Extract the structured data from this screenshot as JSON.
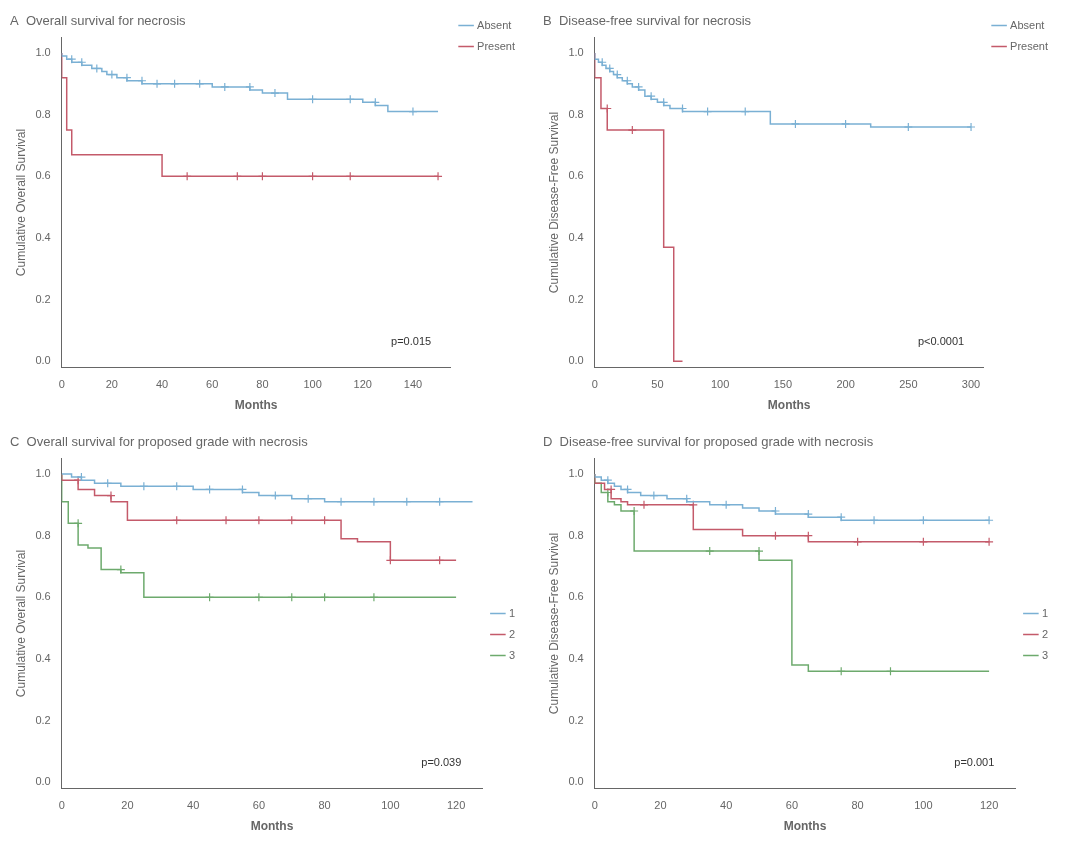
{
  "chart_data": [
    {
      "type": "step",
      "title": "A  Overall survival for necrosis",
      "xlabel": "Months",
      "ylabel": "Cumulative Overall Survival",
      "xlim": [
        0,
        155
      ],
      "ylim": [
        -0.02,
        1.05
      ],
      "xticks": [
        0,
        20,
        40,
        60,
        80,
        100,
        120,
        140
      ],
      "yticks": [
        {
          "value": 0.0,
          "label": "0.0"
        },
        0.2,
        0.4,
        0.6,
        0.8,
        {
          "value": 1.0,
          "label": "1.0"
        }
      ],
      "grid": false,
      "legend": "upper right",
      "annotations": [
        "p=0.015"
      ],
      "series": [
        {
          "name": "Absent",
          "color": "#7ab0d4",
          "x": [
            0,
            2,
            4,
            6,
            8,
            10,
            12,
            14,
            16,
            18,
            20,
            22,
            24,
            26,
            28,
            30,
            32,
            34,
            36,
            38,
            40,
            45,
            50,
            55,
            60,
            65,
            70,
            75,
            80,
            85,
            90,
            100,
            110,
            115,
            120,
            125,
            130,
            140,
            150
          ],
          "values": [
            1.0,
            0.99,
            0.98,
            0.97,
            0.97,
            0.96,
            0.96,
            0.95,
            0.95,
            0.94,
            0.93,
            0.93,
            0.92,
            0.92,
            0.91,
            0.91,
            0.91,
            0.9,
            0.9,
            0.9,
            0.9,
            0.9,
            0.9,
            0.9,
            0.9,
            0.89,
            0.89,
            0.89,
            0.88,
            0.87,
            0.87,
            0.85,
            0.85,
            0.85,
            0.85,
            0.84,
            0.83,
            0.81,
            0.81
          ]
        },
        {
          "type": "scatter",
          "marker": "+",
          "color": "#7ab0d4",
          "x": [
            4,
            8,
            14,
            20,
            26,
            32,
            38,
            45,
            55,
            65,
            75,
            85,
            100,
            115,
            125,
            140
          ],
          "values": [
            0.98,
            0.97,
            0.95,
            0.93,
            0.92,
            0.91,
            0.9,
            0.9,
            0.9,
            0.89,
            0.89,
            0.87,
            0.85,
            0.85,
            0.84,
            0.81
          ]
        },
        {
          "name": "Present",
          "color": "#c45a6a",
          "x": [
            0,
            2,
            4,
            8,
            40,
            50,
            60,
            70,
            80,
            90,
            100,
            115,
            120,
            150
          ],
          "values": [
            1.0,
            0.92,
            0.75,
            0.67,
            0.67,
            0.6,
            0.6,
            0.6,
            0.6,
            0.6,
            0.6,
            0.6,
            0.6,
            0.6
          ]
        },
        {
          "type": "scatter",
          "marker": "+",
          "color": "#c45a6a",
          "x": [
            50,
            70,
            80,
            100,
            115,
            150
          ],
          "values": [
            0.6,
            0.6,
            0.6,
            0.6,
            0.6,
            0.6
          ]
        }
      ]
    },
    {
      "type": "step",
      "title": "B  Disease-free survival for necrosis",
      "xlabel": "Months",
      "ylabel": "Cumulative Disease-Free Survival",
      "xlim": [
        0,
        310
      ],
      "ylim": [
        -0.02,
        1.05
      ],
      "xticks": [
        0,
        50,
        100,
        150,
        200,
        250,
        300
      ],
      "yticks": [
        {
          "value": 0.0,
          "label": "0.0"
        },
        0.2,
        0.4,
        0.6,
        0.8,
        {
          "value": 1.0,
          "label": "1.0"
        }
      ],
      "grid": false,
      "legend": "upper right",
      "annotations": [
        "p<0.0001"
      ],
      "series": [
        {
          "name": "Absent",
          "color": "#7ab0d4",
          "x": [
            0,
            3,
            6,
            9,
            12,
            15,
            18,
            22,
            26,
            30,
            35,
            40,
            45,
            50,
            55,
            60,
            70,
            80,
            90,
            100,
            120,
            140,
            160,
            180,
            200,
            220,
            250,
            270,
            300
          ],
          "values": [
            1.0,
            0.98,
            0.97,
            0.96,
            0.95,
            0.94,
            0.93,
            0.92,
            0.91,
            0.9,
            0.89,
            0.88,
            0.86,
            0.85,
            0.84,
            0.83,
            0.82,
            0.81,
            0.81,
            0.81,
            0.81,
            0.81,
            0.77,
            0.77,
            0.77,
            0.77,
            0.76,
            0.76,
            0.76
          ]
        },
        {
          "type": "scatter",
          "marker": "+",
          "color": "#7ab0d4",
          "x": [
            6,
            12,
            18,
            26,
            35,
            45,
            55,
            70,
            90,
            120,
            160,
            200,
            250,
            300
          ],
          "values": [
            0.97,
            0.95,
            0.93,
            0.91,
            0.89,
            0.86,
            0.84,
            0.82,
            0.81,
            0.81,
            0.77,
            0.77,
            0.76,
            0.76
          ]
        },
        {
          "name": "Present",
          "color": "#c45a6a",
          "x": [
            0,
            5,
            10,
            20,
            30,
            45,
            55,
            63,
            65,
            70
          ],
          "values": [
            1.0,
            0.92,
            0.82,
            0.75,
            0.75,
            0.75,
            0.75,
            0.37,
            0.0,
            0.0
          ]
        },
        {
          "type": "scatter",
          "marker": "+",
          "color": "#c45a6a",
          "x": [
            10,
            30
          ],
          "values": [
            0.82,
            0.75
          ]
        }
      ]
    },
    {
      "type": "step",
      "title": "C  Overall survival for proposed grade with necrosis",
      "xlabel": "Months",
      "ylabel": "Cumulative Overall Survival",
      "xlim": [
        0,
        128
      ],
      "ylim": [
        -0.02,
        1.05
      ],
      "xticks": [
        0,
        20,
        40,
        60,
        80,
        100,
        120
      ],
      "yticks": [
        {
          "value": 0.0,
          "label": "0.0"
        },
        0.2,
        0.4,
        0.6,
        0.8,
        {
          "value": 1.0,
          "label": "1.0"
        }
      ],
      "grid": false,
      "legend": "center right",
      "annotations": [
        "p=0.039"
      ],
      "series": [
        {
          "name": "1",
          "color": "#7ab0d4",
          "x": [
            0,
            3,
            6,
            10,
            14,
            18,
            25,
            30,
            35,
            40,
            45,
            50,
            55,
            60,
            65,
            70,
            75,
            80,
            85,
            90,
            95,
            100,
            105,
            110,
            115,
            120,
            125
          ],
          "values": [
            1.0,
            1.0,
            0.99,
            0.98,
            0.97,
            0.97,
            0.96,
            0.96,
            0.96,
            0.96,
            0.95,
            0.95,
            0.95,
            0.94,
            0.93,
            0.93,
            0.92,
            0.92,
            0.91,
            0.91,
            0.91,
            0.91,
            0.91,
            0.91,
            0.91,
            0.91,
            0.91
          ]
        },
        {
          "type": "scatter",
          "marker": "+",
          "color": "#7ab0d4",
          "x": [
            6,
            14,
            25,
            35,
            45,
            55,
            65,
            75,
            85,
            95,
            105,
            115
          ],
          "values": [
            0.99,
            0.97,
            0.96,
            0.96,
            0.95,
            0.95,
            0.93,
            0.92,
            0.91,
            0.91,
            0.91,
            0.91
          ]
        },
        {
          "name": "2",
          "color": "#c45a6a",
          "x": [
            0,
            5,
            10,
            15,
            17,
            20,
            35,
            45,
            50,
            55,
            60,
            65,
            70,
            75,
            80,
            85,
            90,
            100,
            105,
            108,
            115,
            120
          ],
          "values": [
            1.0,
            0.98,
            0.95,
            0.93,
            0.91,
            0.91,
            0.85,
            0.85,
            0.85,
            0.85,
            0.85,
            0.85,
            0.85,
            0.85,
            0.85,
            0.85,
            0.79,
            0.78,
            0.72,
            0.72,
            0.72,
            0.72
          ]
        },
        {
          "type": "scatter",
          "marker": "+",
          "color": "#c45a6a",
          "x": [
            5,
            15,
            35,
            50,
            60,
            70,
            80,
            100,
            115
          ],
          "values": [
            0.98,
            0.93,
            0.85,
            0.85,
            0.85,
            0.85,
            0.85,
            0.72,
            0.72
          ]
        },
        {
          "name": "3",
          "color": "#6daa6d",
          "x": [
            0,
            2,
            5,
            8,
            12,
            18,
            25,
            35,
            45,
            55,
            60,
            65,
            70,
            75,
            80,
            85,
            90,
            95,
            100,
            110,
            120
          ],
          "values": [
            1.0,
            0.91,
            0.84,
            0.77,
            0.76,
            0.69,
            0.68,
            0.6,
            0.6,
            0.6,
            0.6,
            0.6,
            0.6,
            0.6,
            0.6,
            0.6,
            0.6,
            0.6,
            0.6,
            0.6,
            0.6
          ]
        },
        {
          "type": "scatter",
          "marker": "+",
          "color": "#6daa6d",
          "x": [
            5,
            18,
            45,
            60,
            70,
            80,
            95
          ],
          "values": [
            0.84,
            0.69,
            0.6,
            0.6,
            0.6,
            0.6,
            0.6
          ]
        }
      ]
    },
    {
      "type": "step",
      "title": "D  Disease-free survival for proposed grade with necrosis",
      "xlabel": "Months",
      "ylabel": "Cumulative Disease-Free Survival",
      "xlim": [
        0,
        128
      ],
      "ylim": [
        -0.02,
        1.05
      ],
      "xticks": [
        0,
        20,
        40,
        60,
        80,
        100,
        120
      ],
      "yticks": [
        {
          "value": 0.0,
          "label": "0.0"
        },
        0.2,
        0.4,
        0.6,
        0.8,
        {
          "value": 1.0,
          "label": "1.0"
        }
      ],
      "grid": false,
      "legend": "center right",
      "annotations": [
        "p=0.001"
      ],
      "series": [
        {
          "name": "1",
          "color": "#7ab0d4",
          "x": [
            0,
            2,
            4,
            6,
            8,
            10,
            14,
            18,
            22,
            28,
            35,
            40,
            45,
            50,
            55,
            60,
            65,
            70,
            75,
            80,
            85,
            90,
            100,
            110,
            120
          ],
          "values": [
            1.0,
            0.99,
            0.98,
            0.97,
            0.96,
            0.95,
            0.94,
            0.93,
            0.93,
            0.92,
            0.91,
            0.9,
            0.9,
            0.89,
            0.88,
            0.87,
            0.87,
            0.86,
            0.86,
            0.85,
            0.85,
            0.85,
            0.85,
            0.85,
            0.85
          ]
        },
        {
          "type": "scatter",
          "marker": "+",
          "color": "#7ab0d4",
          "x": [
            4,
            10,
            18,
            28,
            40,
            55,
            65,
            75,
            85,
            100,
            120
          ],
          "values": [
            0.98,
            0.95,
            0.93,
            0.92,
            0.9,
            0.88,
            0.87,
            0.86,
            0.85,
            0.85,
            0.85
          ]
        },
        {
          "name": "2",
          "color": "#c45a6a",
          "x": [
            0,
            3,
            5,
            8,
            10,
            15,
            20,
            30,
            45,
            55,
            60,
            65,
            70,
            80,
            90,
            100,
            110,
            120
          ],
          "values": [
            1.0,
            0.97,
            0.95,
            0.92,
            0.91,
            0.9,
            0.9,
            0.9,
            0.82,
            0.8,
            0.8,
            0.8,
            0.78,
            0.78,
            0.78,
            0.78,
            0.78,
            0.78
          ]
        },
        {
          "type": "scatter",
          "marker": "+",
          "color": "#c45a6a",
          "x": [
            5,
            15,
            30,
            55,
            65,
            80,
            100,
            120
          ],
          "values": [
            0.95,
            0.9,
            0.9,
            0.8,
            0.8,
            0.78,
            0.78,
            0.78
          ]
        },
        {
          "name": "3",
          "color": "#6daa6d",
          "x": [
            0,
            2,
            4,
            6,
            8,
            12,
            18,
            25,
            35,
            50,
            60,
            65,
            70,
            80,
            90,
            100,
            110,
            120
          ],
          "values": [
            1.0,
            0.97,
            0.94,
            0.91,
            0.9,
            0.88,
            0.75,
            0.75,
            0.75,
            0.75,
            0.72,
            0.38,
            0.36,
            0.36,
            0.36,
            0.36,
            0.36,
            0.36
          ]
        },
        {
          "type": "scatter",
          "marker": "+",
          "color": "#6daa6d",
          "x": [
            4,
            12,
            35,
            50,
            75,
            90
          ],
          "values": [
            0.94,
            0.88,
            0.75,
            0.75,
            0.36,
            0.36
          ]
        }
      ]
    }
  ]
}
